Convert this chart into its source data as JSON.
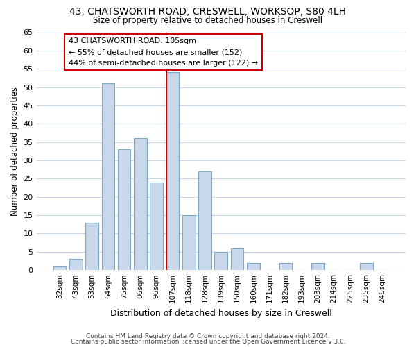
{
  "title1": "43, CHATSWORTH ROAD, CRESWELL, WORKSOP, S80 4LH",
  "title2": "Size of property relative to detached houses in Creswell",
  "xlabel": "Distribution of detached houses by size in Creswell",
  "ylabel": "Number of detached properties",
  "bar_color": "#c8d8ea",
  "bar_edge_color": "#7aaac8",
  "bins": [
    "32sqm",
    "43sqm",
    "53sqm",
    "64sqm",
    "75sqm",
    "86sqm",
    "96sqm",
    "107sqm",
    "118sqm",
    "128sqm",
    "139sqm",
    "150sqm",
    "160sqm",
    "171sqm",
    "182sqm",
    "193sqm",
    "203sqm",
    "214sqm",
    "225sqm",
    "235sqm",
    "246sqm"
  ],
  "values": [
    1,
    3,
    13,
    51,
    33,
    36,
    24,
    54,
    15,
    27,
    5,
    6,
    2,
    0,
    2,
    0,
    2,
    0,
    0,
    2,
    0
  ],
  "highlight_bin_index": 7,
  "highlight_color": "#cc0000",
  "ylim": [
    0,
    65
  ],
  "yticks": [
    0,
    5,
    10,
    15,
    20,
    25,
    30,
    35,
    40,
    45,
    50,
    55,
    60,
    65
  ],
  "annotation_title": "43 CHATSWORTH ROAD: 105sqm",
  "annotation_line1": "← 55% of detached houses are smaller (152)",
  "annotation_line2": "44% of semi-detached houses are larger (122) →",
  "footer1": "Contains HM Land Registry data © Crown copyright and database right 2024.",
  "footer2": "Contains public sector information licensed under the Open Government Licence v 3.0.",
  "background_color": "#ffffff",
  "grid_color": "#c8d8ea"
}
